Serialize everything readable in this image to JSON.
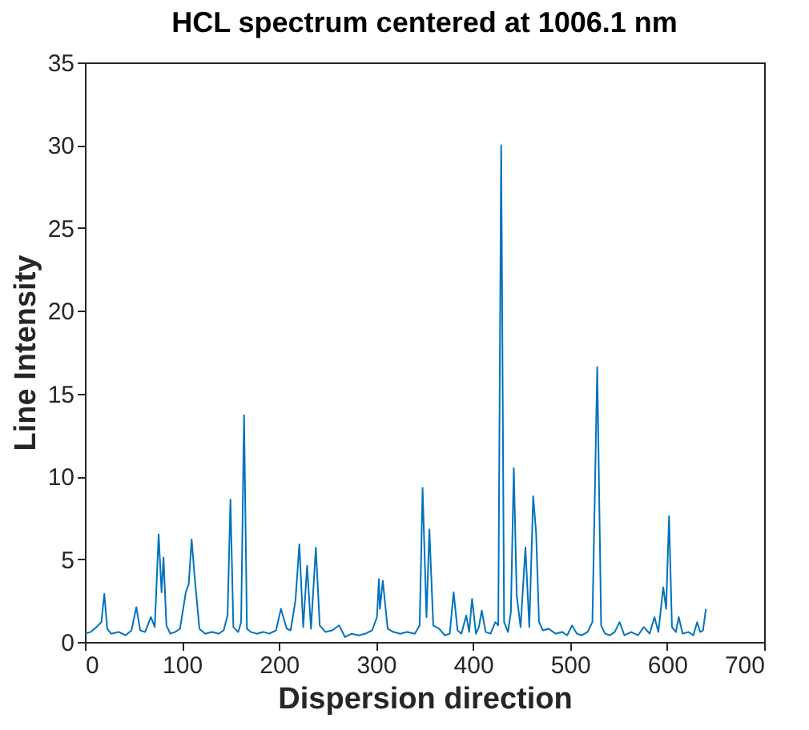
{
  "chart_data": {
    "type": "line",
    "title": "HCL spectrum centered at 1006.1 nm",
    "xlabel": "Dispersion direction",
    "ylabel": "Line Intensity",
    "xlim": [
      0,
      700
    ],
    "ylim": [
      0,
      35
    ],
    "xticks": [
      0,
      100,
      200,
      300,
      400,
      500,
      600,
      700
    ],
    "yticks": [
      0,
      5,
      10,
      15,
      20,
      25,
      30,
      35
    ],
    "grid": false,
    "marker": "none",
    "line_style": "solid",
    "x": [
      0,
      6,
      12,
      17,
      20,
      23,
      27,
      35,
      42,
      48,
      53,
      57,
      62,
      68,
      72,
      76,
      79,
      81,
      84,
      88,
      93,
      98,
      104,
      107,
      110,
      113,
      118,
      124,
      131,
      138,
      143,
      147,
      150,
      153,
      158,
      161,
      164,
      167,
      171,
      177,
      184,
      190,
      197,
      202,
      208,
      212,
      217,
      221,
      225,
      229,
      233,
      238,
      242,
      248,
      255,
      262,
      268,
      275,
      282,
      289,
      296,
      301,
      303,
      304,
      307,
      312,
      318,
      325,
      332,
      340,
      345,
      348,
      352,
      355,
      359,
      365,
      371,
      376,
      380,
      384,
      388,
      393,
      396,
      399,
      403,
      406,
      409,
      413,
      418,
      423,
      426,
      429,
      432,
      436,
      439,
      442,
      445,
      449,
      454,
      458,
      462,
      465,
      468,
      472,
      478,
      485,
      492,
      497,
      502,
      507,
      512,
      518,
      523,
      528,
      532,
      536,
      541,
      546,
      551,
      556,
      563,
      570,
      576,
      582,
      587,
      591,
      596,
      599,
      602,
      605,
      609,
      612,
      616,
      622,
      627,
      631,
      634,
      637,
      640
    ],
    "series": [
      {
        "color": "#0072bd",
        "values": [
          0.5,
          0.6,
          0.9,
          1.2,
          2.9,
          0.8,
          0.5,
          0.6,
          0.4,
          0.7,
          2.1,
          0.7,
          0.6,
          1.5,
          0.9,
          6.5,
          3.0,
          5.1,
          1.0,
          0.5,
          0.6,
          0.8,
          3.0,
          3.5,
          6.2,
          4.0,
          0.8,
          0.5,
          0.6,
          0.5,
          0.7,
          1.6,
          8.6,
          0.9,
          0.6,
          1.2,
          13.7,
          0.8,
          0.6,
          0.5,
          0.6,
          0.5,
          0.7,
          2.0,
          0.8,
          0.7,
          2.5,
          5.9,
          0.9,
          4.6,
          0.8,
          5.7,
          1.0,
          0.6,
          0.7,
          1.0,
          0.3,
          0.5,
          0.4,
          0.5,
          0.7,
          1.5,
          3.8,
          2.0,
          3.7,
          0.8,
          0.6,
          0.5,
          0.6,
          0.5,
          1.0,
          9.3,
          1.5,
          6.8,
          1.0,
          0.8,
          0.4,
          0.5,
          3.0,
          0.7,
          0.5,
          1.6,
          0.6,
          2.6,
          0.5,
          0.9,
          1.9,
          0.6,
          0.5,
          1.2,
          1.0,
          30.0,
          1.2,
          0.6,
          1.8,
          10.5,
          2.8,
          0.9,
          5.7,
          0.9,
          8.8,
          6.6,
          1.2,
          0.7,
          0.8,
          0.5,
          0.6,
          0.4,
          1.0,
          0.5,
          0.4,
          0.6,
          1.2,
          16.6,
          1.0,
          0.5,
          0.4,
          0.6,
          1.2,
          0.4,
          0.6,
          0.4,
          0.9,
          0.5,
          1.5,
          0.6,
          3.3,
          2.0,
          7.6,
          0.9,
          0.6,
          1.5,
          0.5,
          0.6,
          0.4,
          1.2,
          0.6,
          0.7,
          2.0
        ]
      }
    ]
  }
}
